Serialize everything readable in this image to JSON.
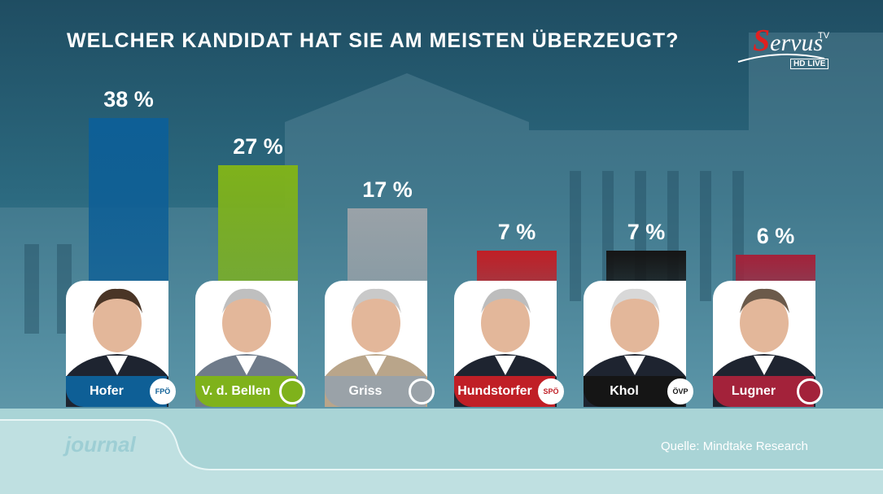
{
  "title": "WELCHER KANDIDAT HAT SIE AM MEISTEN ÜBERZEUGT?",
  "logo": {
    "brand": "Servus",
    "tv": "TV",
    "hd": "HD LIVE"
  },
  "source": "Quelle: Mindtake Research",
  "watermark": "journal",
  "chart_data": {
    "type": "bar",
    "unit": "%",
    "categories": [
      "Hofer",
      "V. d. Bellen",
      "Griss",
      "Hundstorfer",
      "Khol",
      "Lugner"
    ],
    "values": [
      38,
      27,
      17,
      7,
      7,
      6
    ],
    "labels": [
      "38 %",
      "27 %",
      "17 %",
      "7 %",
      "7 %",
      "6 %"
    ],
    "party_badges": [
      "FPÖ",
      "",
      "",
      "SPÖ",
      "ÖVP",
      ""
    ],
    "colors": [
      "#0e5f96",
      "#7fb21b",
      "#9aa2a8",
      "#c01f26",
      "#151515",
      "#a3223a"
    ],
    "ylim": [
      0,
      40
    ]
  }
}
